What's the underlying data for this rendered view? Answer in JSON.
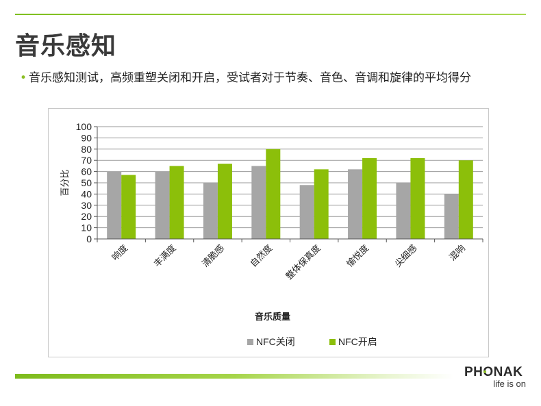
{
  "slide": {
    "title": "音乐感知",
    "bullet": "音乐感知测试，高频重塑关闭和开启，受试者对于节奏、音色、音调和旋律的平均得分"
  },
  "brand": {
    "name": "PHONAK",
    "tagline": "life is on",
    "accent_color": "#8cbf26"
  },
  "chart_data": {
    "type": "bar",
    "categories": [
      "响度",
      "丰满度",
      "清脆感",
      "自然度",
      "整体保真度",
      "愉悦度",
      "尖细感",
      "混响"
    ],
    "series": [
      {
        "name": "NFC关闭",
        "color": "#a6a6a6",
        "values": [
          60,
          60,
          50,
          65,
          48,
          62,
          50,
          40
        ]
      },
      {
        "name": "NFC开启",
        "color": "#8cbf0a",
        "values": [
          57,
          65,
          67,
          80,
          62,
          72,
          72,
          70
        ]
      }
    ],
    "ylabel": "百分比",
    "xlabel": "音乐质量",
    "ylim": [
      0,
      100
    ],
    "yticks": [
      0,
      10,
      20,
      30,
      40,
      50,
      60,
      70,
      80,
      90,
      100
    ],
    "grid": true,
    "legend": "bottom"
  }
}
